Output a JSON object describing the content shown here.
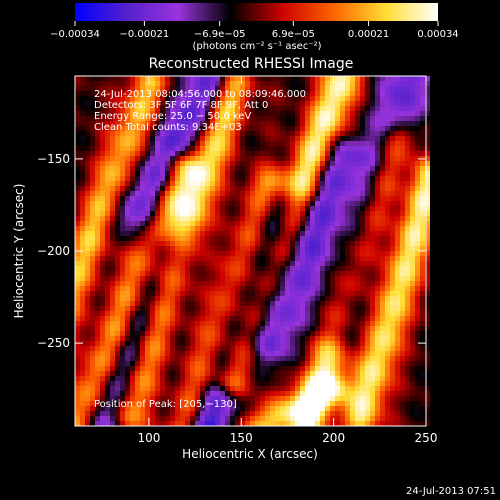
{
  "chart_data": {
    "type": "heatmap",
    "title": "Reconstructed RHESSI Image",
    "xlabel": "Heliocentric X (arcsec)",
    "ylabel": "Heliocentric Y (arcsec)",
    "xlim": [
      60,
      250
    ],
    "ylim": [
      -295,
      -105
    ],
    "x_ticks": [
      100,
      150,
      200,
      250
    ],
    "y_ticks": [
      -150,
      -200,
      -250
    ],
    "x_tick_labels": [
      "100",
      "150",
      "200",
      "250"
    ],
    "y_tick_labels": [
      "−150",
      "−200",
      "−250"
    ],
    "colorbar": {
      "range": [
        -0.00034,
        0.00034
      ],
      "tick_values": [
        -0.00034,
        -0.00021,
        -6.9e-05,
        6.9e-05,
        0.00021,
        0.00034
      ],
      "tick_labels": [
        "−0.00034",
        "−0.00021",
        "−6.9e−05",
        "6.9e−05",
        "0.00021",
        "0.00034"
      ],
      "units_label": "(photons cm⁻² s⁻¹ asec⁻²)",
      "colors": [
        "#0000ff",
        "#5522cc",
        "#9933dd",
        "#000000",
        "#cc0000",
        "#ff6600",
        "#ffdd33",
        "#ffffff"
      ]
    },
    "annotations": [
      "24-Jul-2013 08:04:56.000 to 08:09:46.000",
      "Detectors: 3F 5F 6F 7F 8F 9F, Att 0",
      "Energy Range: 25.0 − 50.0 keV",
      "Clean     Total counts: 9.34E+03"
    ],
    "position_label": "Position of Peak: [205,−130]",
    "timestamp": "24-Jul-2013 07:51",
    "bright_ridges": [
      {
        "x0": 50,
        "y0": -240,
        "x1": 100,
        "y1": -110,
        "peak": 0.7
      },
      {
        "x0": 62,
        "y0": -295,
        "x1": 118,
        "y1": -155,
        "peak": 0.85
      },
      {
        "x0": 88,
        "y0": -290,
        "x1": 145,
        "y1": -110,
        "peak": 0.9
      },
      {
        "x0": 120,
        "y0": -295,
        "x1": 165,
        "y1": -165,
        "peak": 0.75
      },
      {
        "x0": 145,
        "y0": -270,
        "x1": 205,
        "y1": -105,
        "peak": 1.0
      },
      {
        "x0": 185,
        "y0": -295,
        "x1": 235,
        "y1": -140,
        "peak": 0.85
      },
      {
        "x0": 215,
        "y0": -290,
        "x1": 252,
        "y1": -160,
        "peak": 0.9
      },
      {
        "x0": 160,
        "y0": -295,
        "x1": 200,
        "y1": -275,
        "peak": 0.7
      }
    ],
    "dark_lanes": [
      {
        "x0": 75,
        "y0": -295,
        "x1": 110,
        "y1": -200,
        "depth": 0.9
      },
      {
        "x0": 130,
        "y0": -295,
        "x1": 170,
        "y1": -180,
        "depth": 1.0
      },
      {
        "x0": 165,
        "y0": -250,
        "x1": 205,
        "y1": -150,
        "depth": 0.7
      },
      {
        "x0": 95,
        "y0": -180,
        "x1": 135,
        "y1": -105,
        "depth": 0.8
      },
      {
        "x0": 205,
        "y0": -240,
        "x1": 240,
        "y1": -105,
        "depth": 0.7
      }
    ]
  }
}
